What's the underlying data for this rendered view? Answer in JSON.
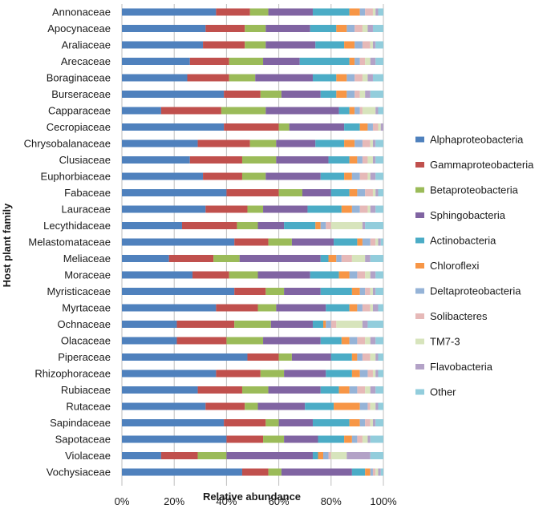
{
  "chart_data": {
    "type": "bar",
    "orientation": "horizontal",
    "stacked": true,
    "normalized": true,
    "title": "",
    "xlabel": "Relative abundance",
    "ylabel": "Host plant family",
    "xlim": [
      0,
      100
    ],
    "x_ticks": [
      "0%",
      "20%",
      "40%",
      "60%",
      "80%",
      "100%"
    ],
    "grid": "vertical",
    "legend_position": "right",
    "categories": [
      "Annonaceae",
      "Apocynaceae",
      "Araliaceae",
      "Arecaceae",
      "Boraginaceae",
      "Burseraceae",
      "Capparaceae",
      "Cecropiaceae",
      "Chrysobalanaceae",
      "Clusiaceae",
      "Euphorbiaceae",
      "Fabaceae",
      "Lauraceae",
      "Lecythidaceae",
      "Melastomataceae",
      "Meliaceae",
      "Moraceae",
      "Myristicaceae",
      "Myrtaceae",
      "Ochnaceae",
      "Olacaceae",
      "Piperaceae",
      "Rhizophoraceae",
      "Rubiaceae",
      "Rutaceae",
      "Sapindaceae",
      "Sapotaceae",
      "Violaceae",
      "Vochysiaceae"
    ],
    "series": [
      {
        "name": "Alphaproteobacteria",
        "color": "#4f81bd",
        "values": [
          36,
          32,
          31,
          26,
          25,
          39,
          15,
          39,
          29,
          26,
          31,
          40,
          32,
          23,
          43,
          18,
          27,
          43,
          36,
          21,
          21,
          48,
          36,
          29,
          32,
          39,
          40,
          15,
          46
        ]
      },
      {
        "name": "Gammaproteobacteria",
        "color": "#c0504d",
        "values": [
          13,
          15,
          16,
          15,
          16,
          14,
          23,
          21,
          20,
          20,
          15,
          20,
          16,
          21,
          13,
          17,
          14,
          12,
          16,
          22,
          19,
          12,
          17,
          17,
          15,
          16,
          14,
          14,
          10
        ]
      },
      {
        "name": "Betaproteobacteria",
        "color": "#9bbb59",
        "values": [
          7,
          8,
          8,
          13,
          10,
          8,
          17,
          4,
          10,
          13,
          9,
          9,
          6,
          8,
          9,
          10,
          11,
          7,
          7,
          14,
          14,
          5,
          9,
          10,
          5,
          5,
          8,
          11,
          5
        ]
      },
      {
        "name": "Sphingobacteria",
        "color": "#8064a2",
        "values": [
          17,
          17,
          19,
          14,
          22,
          15,
          28,
          21,
          15,
          20,
          21,
          11,
          17,
          10,
          16,
          31,
          20,
          14,
          19,
          16,
          22,
          15,
          16,
          20,
          18,
          13,
          13,
          33,
          27
        ]
      },
      {
        "name": "Actinobacteria",
        "color": "#4bacc6",
        "values": [
          14,
          10,
          11,
          19,
          9,
          6,
          4,
          6,
          11,
          8,
          9,
          7,
          13,
          12,
          9,
          3,
          11,
          12,
          9,
          4,
          8,
          8,
          10,
          7,
          11,
          14,
          10,
          2,
          5
        ]
      },
      {
        "name": "Chloroflexi",
        "color": "#f79646",
        "values": [
          4,
          4,
          4,
          2,
          4,
          4,
          2,
          3,
          4,
          3,
          3,
          3,
          4,
          2,
          2,
          3,
          4,
          3,
          3,
          1,
          3,
          2,
          3,
          4,
          10,
          4,
          3,
          2,
          2
        ]
      },
      {
        "name": "Deltaproteobacteria",
        "color": "#95b3d7",
        "values": [
          2,
          3,
          3,
          2,
          3,
          3,
          2,
          2,
          3,
          2,
          3,
          3,
          3,
          2,
          3,
          2,
          3,
          2,
          2,
          2,
          3,
          2,
          3,
          3,
          3,
          2,
          2,
          2,
          1
        ]
      },
      {
        "name": "Solibacteres",
        "color": "#e6b9b8",
        "values": [
          3,
          3,
          3,
          2,
          3,
          2,
          1,
          2,
          3,
          2,
          3,
          3,
          3,
          2,
          2,
          4,
          3,
          2,
          3,
          2,
          3,
          3,
          2,
          3,
          1,
          2,
          2,
          1,
          1
        ]
      },
      {
        "name": "TM7-3",
        "color": "#d7e4bc",
        "values": [
          1,
          2,
          1,
          2,
          2,
          2,
          5,
          1,
          1,
          2,
          1,
          1,
          1,
          12,
          1,
          5,
          2,
          1,
          1,
          10,
          2,
          2,
          1,
          2,
          2,
          1,
          2,
          6,
          1
        ]
      },
      {
        "name": "Flavobacteria",
        "color": "#b3a2c7",
        "values": [
          1,
          2,
          1,
          2,
          2,
          2,
          1,
          1,
          1,
          1,
          2,
          1,
          2,
          1,
          1,
          2,
          2,
          1,
          2,
          2,
          2,
          1,
          1,
          2,
          1,
          1,
          1,
          9,
          1
        ]
      },
      {
        "name": "Other",
        "color": "#92cddc",
        "values": [
          2,
          4,
          3,
          3,
          4,
          5,
          2,
          0,
          3,
          3,
          3,
          2,
          3,
          7,
          1,
          5,
          3,
          3,
          2,
          6,
          3,
          2,
          2,
          3,
          2,
          3,
          5,
          5,
          1
        ]
      }
    ]
  }
}
